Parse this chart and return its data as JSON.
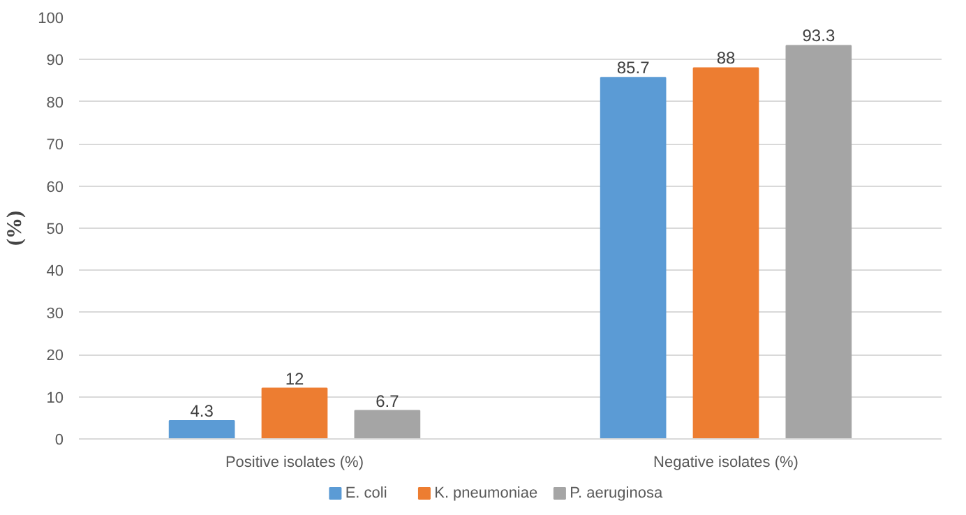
{
  "chart_data": {
    "type": "bar",
    "ylabel": "(%)",
    "categories": [
      "Positive isolates (%)",
      "Negative isolates (%)"
    ],
    "series": [
      {
        "name": "E. coli",
        "color": "#5b9bd5",
        "values": [
          4.3,
          85.7
        ]
      },
      {
        "name": "K. pneumoniae",
        "color": "#ed7d31",
        "values": [
          12,
          88
        ]
      },
      {
        "name": "P. aeruginosa",
        "color": "#a5a5a5",
        "values": [
          6.7,
          93.3
        ]
      }
    ],
    "ylim": [
      0,
      100
    ],
    "yticks": [
      0,
      10,
      20,
      30,
      40,
      50,
      60,
      70,
      80,
      90,
      100
    ],
    "grid": "y",
    "legend": "bottom",
    "data_labels": true
  }
}
